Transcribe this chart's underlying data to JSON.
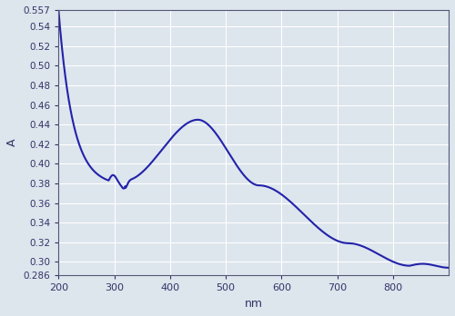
{
  "xlim": [
    200,
    900
  ],
  "ylim": [
    0.286,
    0.557
  ],
  "xlabel": "nm",
  "ylabel": "A",
  "line_color": "#2222aa",
  "line_width": 1.5,
  "background_color": "#dde5ed",
  "grid_color": "#ffffff",
  "tick_label_color": "#333366",
  "xticks": [
    200,
    300,
    400,
    500,
    600,
    700,
    800
  ],
  "yticks": [
    0.286,
    0.3,
    0.32,
    0.34,
    0.36,
    0.38,
    0.4,
    0.42,
    0.44,
    0.46,
    0.48,
    0.5,
    0.52,
    0.54,
    0.557
  ],
  "ytick_labels": [
    "0.286",
    "0.30",
    "0.32",
    "0.34",
    "0.36",
    "0.38",
    "0.40",
    "0.42",
    "0.44",
    "0.46",
    "0.48",
    "0.50",
    "0.52",
    "0.54",
    "0.557"
  ]
}
